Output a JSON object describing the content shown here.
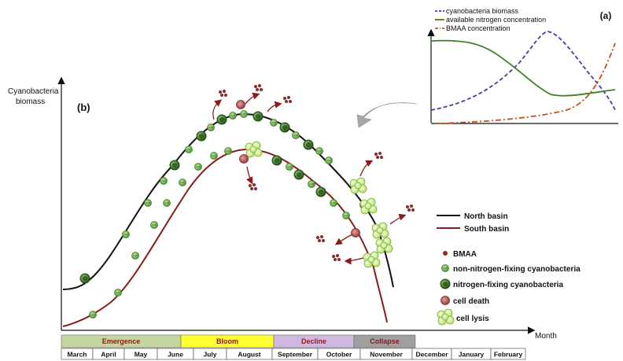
{
  "main": {
    "y_label_line1": "Cyanobacteria",
    "y_label_line2": "biomass",
    "x_label": "Month",
    "panel_label": "(b)"
  },
  "inset": {
    "panel_label": "(a)",
    "legend": [
      {
        "label": "cyanobacteria biomass",
        "color": "#5533aa",
        "style": "dashed"
      },
      {
        "label": "available nitrogen concentration",
        "color": "#3f7f2a",
        "style": "solid"
      },
      {
        "label": "BMAA concentration",
        "color": "#c8501a",
        "style": "dashdot"
      }
    ]
  },
  "series_legend": [
    {
      "label": "North basin",
      "color": "#111111"
    },
    {
      "label": "South basin",
      "color": "#8b1a1a"
    }
  ],
  "icon_legend": [
    {
      "label": "BMAA",
      "icon": "bmaa-dot-icon"
    },
    {
      "label": "non-nitrogen-fixing cyanobacteria",
      "icon": "non-fixing-cell-icon"
    },
    {
      "label": "nitrogen-fixing cyanobacteria",
      "icon": "fixing-cell-icon"
    },
    {
      "label": "cell death",
      "icon": "dead-cell-icon"
    },
    {
      "label": "cell lysis",
      "icon": "lysis-cluster-icon"
    }
  ],
  "phases": [
    {
      "label": "Emergence",
      "color": "#c4d7a0",
      "text_color": "#8b1a1a"
    },
    {
      "label": "Bloom",
      "color": "#ffff33",
      "text_color": "#8b1a1a"
    },
    {
      "label": "Decline",
      "color": "#d0b8e0",
      "text_color": "#8b1a1a"
    },
    {
      "label": "Collapse",
      "color": "#a0a0a0",
      "text_color": "#8b1a1a"
    }
  ],
  "months": [
    "March",
    "April",
    "May",
    "June",
    "July",
    "August",
    "September",
    "October",
    "November",
    "December",
    "January",
    "February"
  ]
}
